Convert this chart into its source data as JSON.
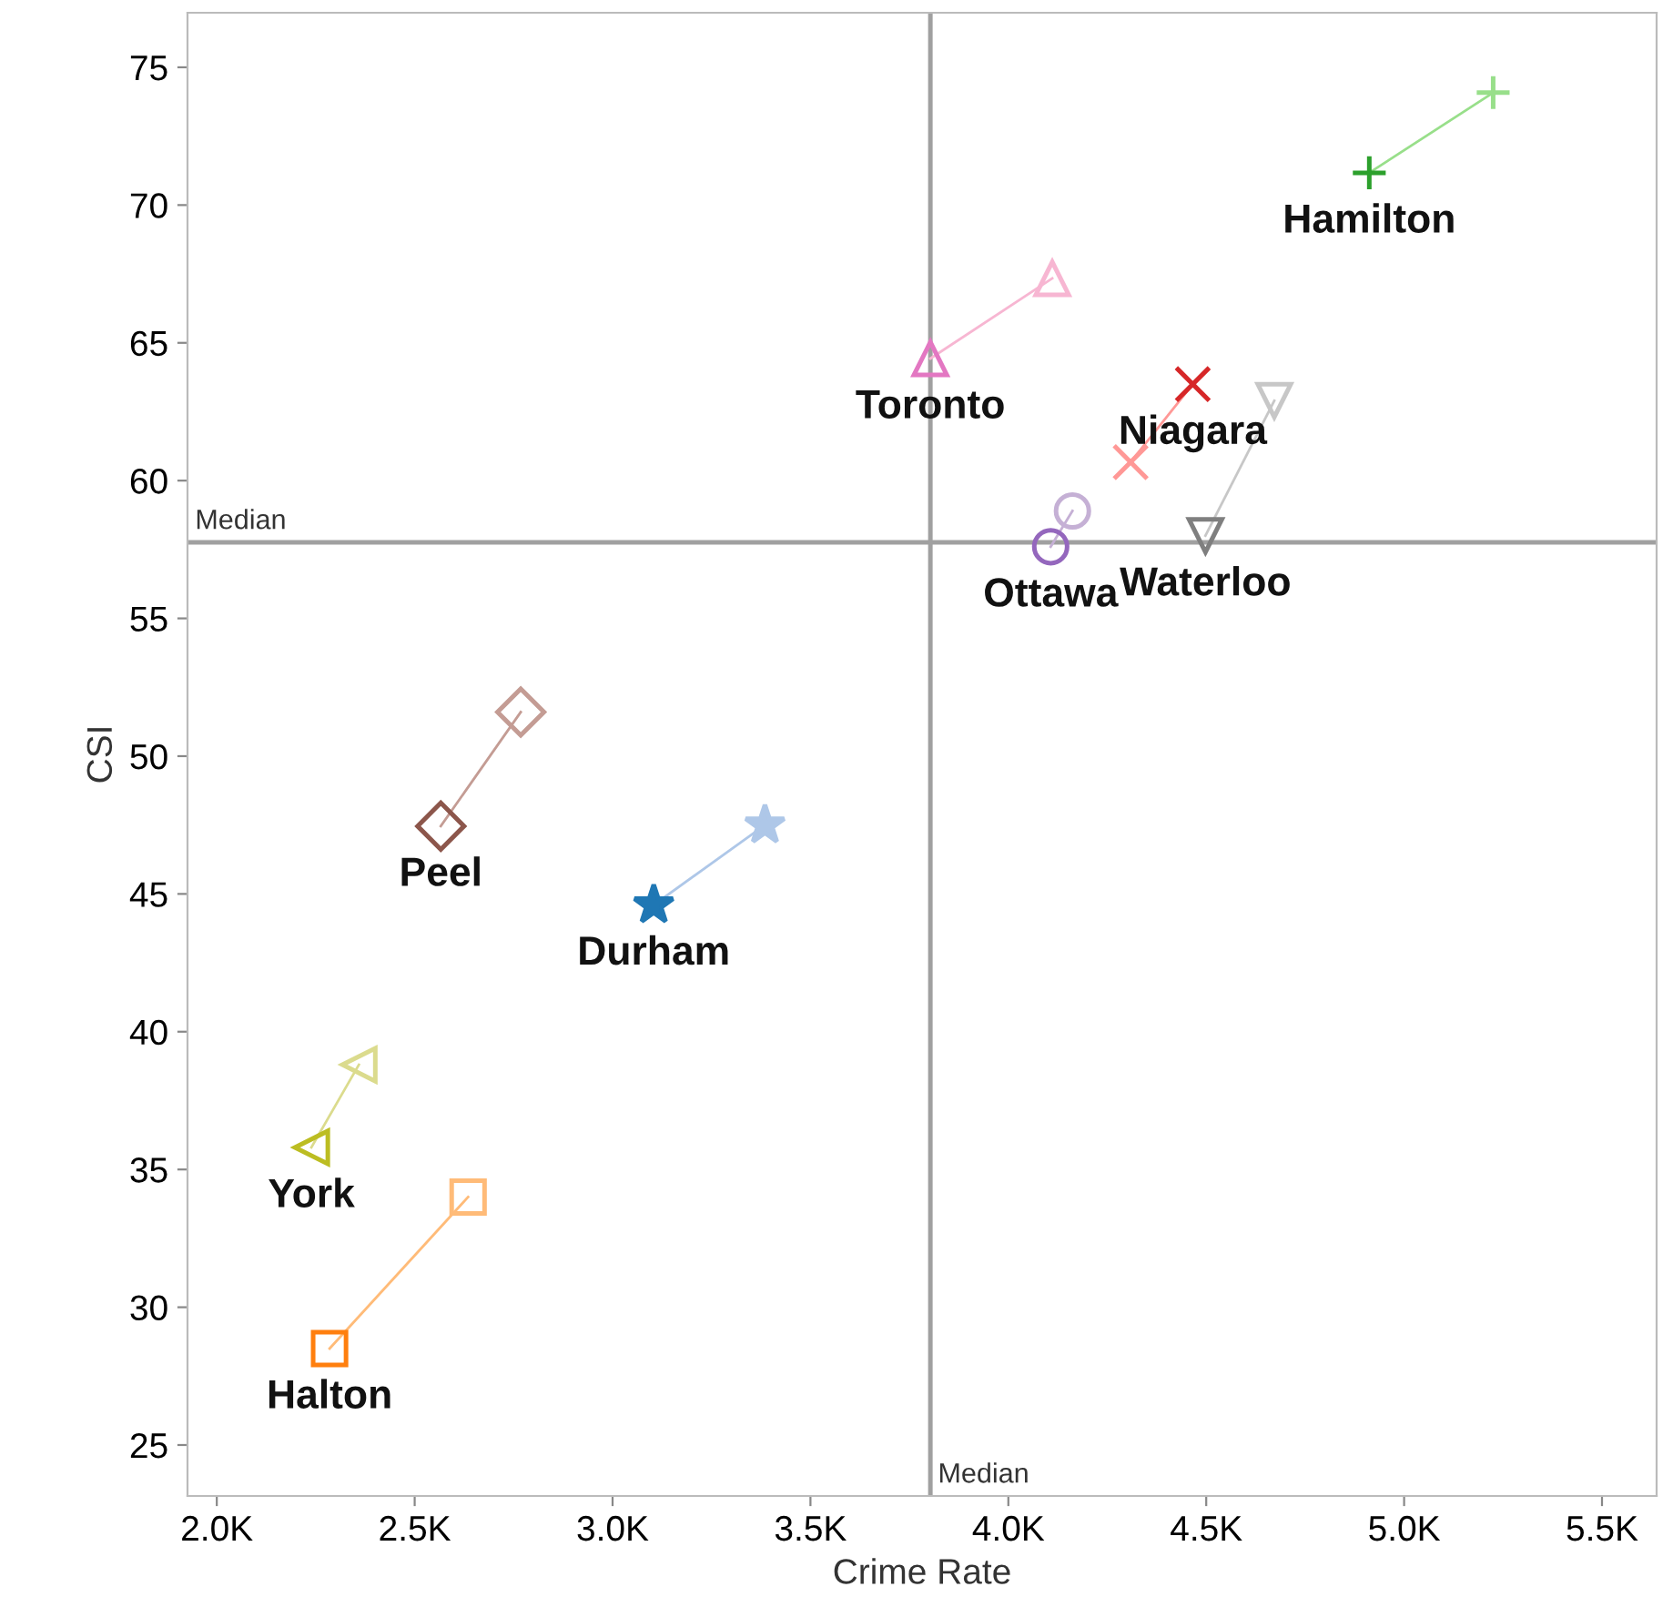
{
  "chart_data": {
    "type": "line",
    "xlabel": "Crime Rate",
    "ylabel": "CSI",
    "xlim": [
      1926,
      5638
    ],
    "ylim": [
      23.15,
      76.98
    ],
    "xticks": [
      {
        "value": 2000,
        "label": "2.0K"
      },
      {
        "value": 2500,
        "label": "2.5K"
      },
      {
        "value": 3000,
        "label": "3.0K"
      },
      {
        "value": 3500,
        "label": "3.5K"
      },
      {
        "value": 4000,
        "label": "4.0K"
      },
      {
        "value": 4500,
        "label": "4.5K"
      },
      {
        "value": 5000,
        "label": "5.0K"
      },
      {
        "value": 5500,
        "label": "5.5K"
      }
    ],
    "yticks": [
      25,
      30,
      35,
      40,
      45,
      50,
      55,
      60,
      65,
      70,
      75
    ],
    "grid": false,
    "legend": false,
    "line_style": "solid",
    "ref_lines": [
      {
        "axis": "x",
        "value": 3803,
        "label": "Median",
        "color": "#a0a0a0"
      },
      {
        "axis": "y",
        "value": 57.76,
        "label": "Median",
        "color": "#a0a0a0"
      }
    ],
    "series": [
      {
        "name": "Hamilton",
        "marker": "plus",
        "color": "#98df8a",
        "colors": [
          "#2ca02c",
          "#98df8a"
        ],
        "x": [
          4912,
          5225
        ],
        "values": [
          71.17,
          74.08
        ]
      },
      {
        "name": "Toronto",
        "marker": "triangle",
        "color": "#f7b6d2",
        "colors": [
          "#e377c2",
          "#f7b6d2"
        ],
        "x": [
          3803,
          4111
        ],
        "values": [
          64.43,
          67.34
        ]
      },
      {
        "name": "Niagara",
        "marker": "cross",
        "color": "#ff9896",
        "colors": [
          "#d62728",
          "#ff9896"
        ],
        "x": [
          4466,
          4309
        ],
        "values": [
          63.5,
          60.67
        ]
      },
      {
        "name": "Waterloo",
        "marker": "triangle-down",
        "color": "#c7c7c7",
        "colors": [
          "#7f7f7f",
          "#c7c7c7"
        ],
        "x": [
          4498,
          4672
        ],
        "values": [
          58.0,
          62.9
        ]
      },
      {
        "name": "Ottawa",
        "marker": "circle",
        "color": "#c5b0d5",
        "colors": [
          "#9467bd",
          "#c5b0d5"
        ],
        "x": [
          4107,
          4162
        ],
        "values": [
          57.6,
          58.9
        ]
      },
      {
        "name": "Peel",
        "marker": "diamond",
        "color": "#c49c94",
        "colors": [
          "#8c564b",
          "#c49c94"
        ],
        "x": [
          2566,
          2768
        ],
        "values": [
          47.46,
          51.6
        ]
      },
      {
        "name": "Durham",
        "marker": "star",
        "color": "#aec7e8",
        "colors": [
          "#1f77b4",
          "#aec7e8"
        ],
        "x": [
          3104,
          3385
        ],
        "values": [
          44.6,
          47.5
        ]
      },
      {
        "name": "York",
        "marker": "triangle-left",
        "color": "#dbdb8d",
        "colors": [
          "#bcbd22",
          "#dbdb8d"
        ],
        "x": [
          2239,
          2359
        ],
        "values": [
          35.8,
          38.8
        ]
      },
      {
        "name": "Halton",
        "marker": "square",
        "color": "#ffbb78",
        "colors": [
          "#ff7f0e",
          "#ffbb78"
        ],
        "x": [
          2285,
          2635
        ],
        "values": [
          28.5,
          34.0
        ]
      }
    ]
  }
}
